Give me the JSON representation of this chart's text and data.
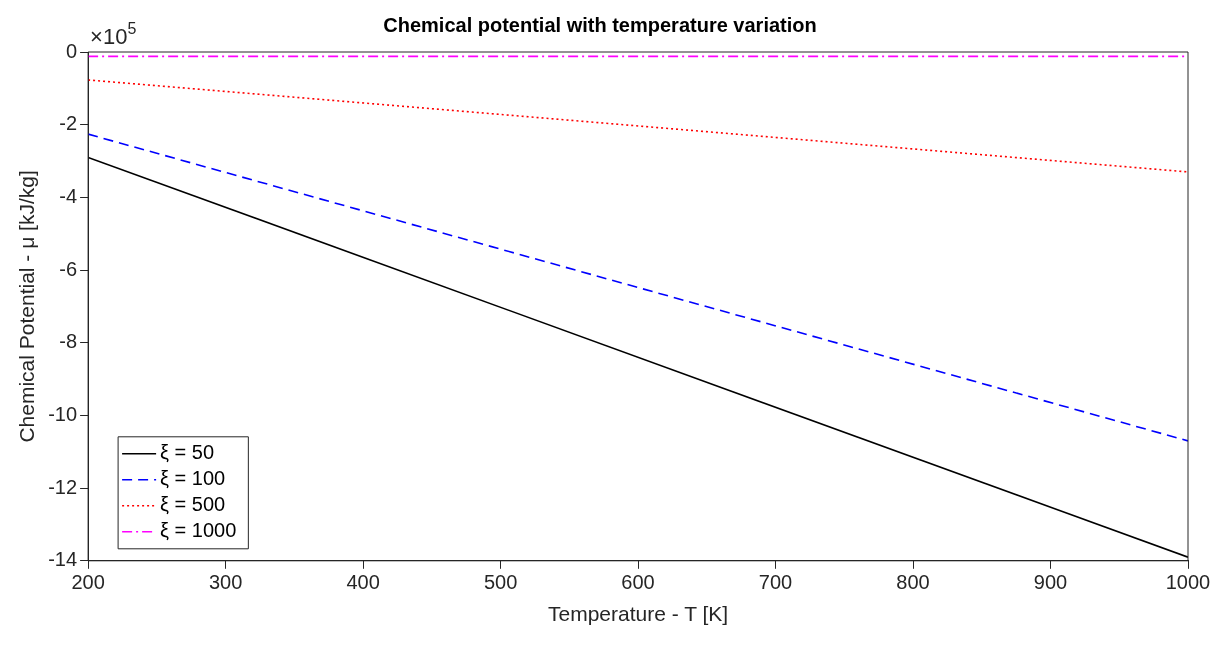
{
  "chart_data": {
    "type": "line",
    "title": "Chemical potential with temperature variation",
    "xlabel": "Temperature - T [K]",
    "ylabel": "Chemical Potential - μ [kJ/kg]",
    "annotations": [
      "×10$^{5}$"
    ],
    "x": [
      200,
      1000
    ],
    "series": [
      {
        "name": "ξ = 50",
        "color": "#000000",
        "values": [
          -2.9,
          -13.9
        ],
        "line_style": "solid"
      },
      {
        "name": "ξ = 100",
        "color": "#0000ff",
        "values": [
          -2.26,
          -10.7
        ],
        "line_style": "dashed"
      },
      {
        "name": "ξ = 500",
        "color": "#ff0000",
        "values": [
          -0.77,
          -3.3
        ],
        "line_style": "dotted"
      },
      {
        "name": "ξ = 1000",
        "color": "#ff00ff",
        "values": [
          -0.12,
          -0.12
        ],
        "line_style": "dashdot"
      }
    ],
    "xlim": [
      200,
      1000
    ],
    "xticks": [
      200,
      300,
      400,
      500,
      600,
      700,
      800,
      900,
      1000
    ],
    "ylim": [
      -14,
      0
    ],
    "yticks": [
      -14,
      -12,
      -10,
      -8,
      -6,
      -4,
      -2,
      0
    ],
    "grid": false,
    "legend": "bottom left",
    "marker": "none"
  }
}
